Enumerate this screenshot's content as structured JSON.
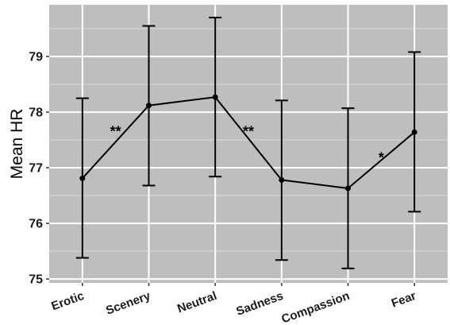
{
  "chart_data": {
    "type": "line",
    "title": "",
    "xlabel": "",
    "ylabel": "Mean HR",
    "ylim": [
      74.93,
      79.93
    ],
    "yticks": [
      75,
      76,
      77,
      78,
      79
    ],
    "ytick_labels": [
      "75",
      "76",
      "77",
      "78",
      "79"
    ],
    "grid": true,
    "legend": "none",
    "categories": [
      "Erotic",
      "Scenery",
      "Neutral",
      "Sadness",
      "Compassion",
      "Fear"
    ],
    "series": [
      {
        "values": [
          76.81,
          78.12,
          78.27,
          76.78,
          76.63,
          77.64
        ],
        "error_low": [
          75.38,
          76.68,
          76.84,
          75.34,
          75.19,
          76.21
        ],
        "error_high": [
          78.25,
          79.55,
          79.7,
          78.21,
          78.07,
          79.08
        ]
      }
    ],
    "annotations": [
      {
        "text": "**",
        "between": [
          "Erotic",
          "Scenery"
        ],
        "y": 77.65
      },
      {
        "text": "**",
        "between": [
          "Neutral",
          "Sadness"
        ],
        "y": 77.65
      },
      {
        "text": "*",
        "between": [
          "Compassion",
          "Fear"
        ],
        "y": 77.18
      }
    ],
    "colors": {
      "panel": "#bebebe",
      "grid_major": "#ffffff",
      "grid_minor": "#d9d9d9",
      "line": "#000000"
    }
  }
}
